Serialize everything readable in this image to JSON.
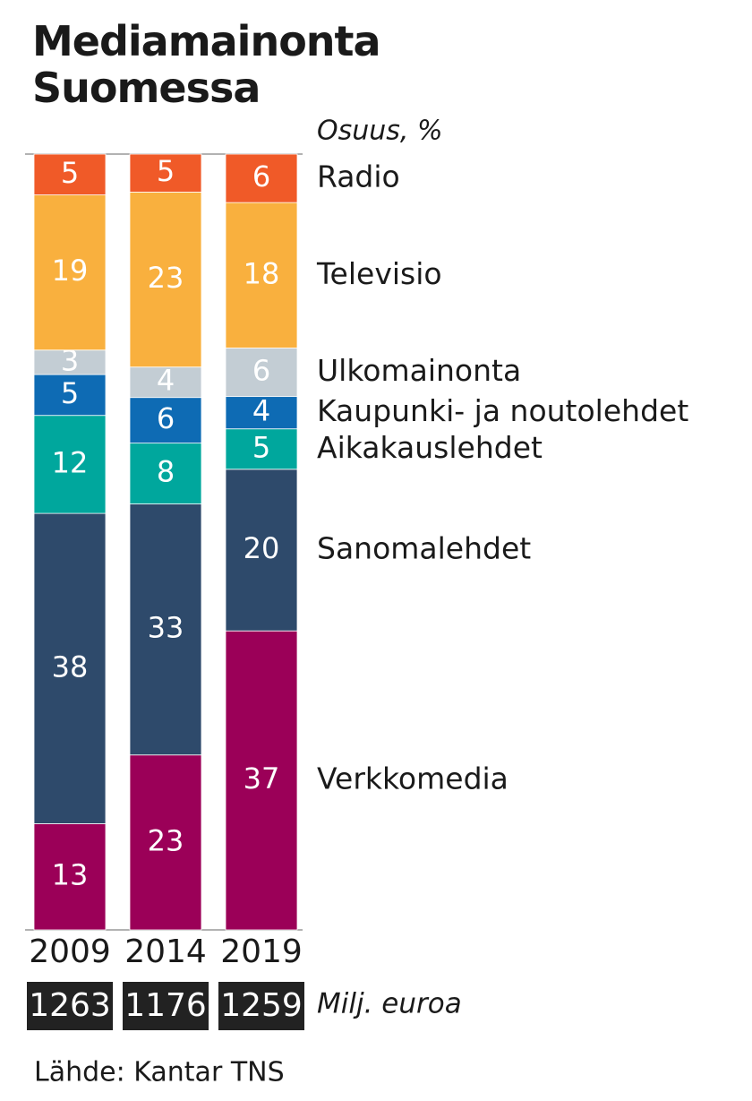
{
  "chart_data": {
    "type": "bar",
    "stacked": "percent",
    "title": "Mediamainonta Suomessa",
    "y_label": "Osuus, %",
    "categories": [
      "2009",
      "2014",
      "2019"
    ],
    "series": [
      {
        "name": "Verkkomedia",
        "color": "#9b0058",
        "values": [
          13,
          23,
          37
        ]
      },
      {
        "name": "Sanomalehdet",
        "color": "#2e4a6b",
        "values": [
          38,
          33,
          20
        ]
      },
      {
        "name": "Aikakauslehdet",
        "color": "#00a79d",
        "values": [
          12,
          8,
          5
        ]
      },
      {
        "name": "Kaupunki- ja noutolehdet",
        "color": "#0e6bb4",
        "values": [
          5,
          6,
          4
        ]
      },
      {
        "name": "Ulkomainonta",
        "color": "#c3cdd4",
        "values": [
          3,
          4,
          6
        ]
      },
      {
        "name": "Televisio",
        "color": "#f9b03e",
        "values": [
          19,
          23,
          18
        ]
      },
      {
        "name": "Radio",
        "color": "#f05a28",
        "values": [
          5,
          5,
          6
        ]
      }
    ],
    "totals": [
      1263,
      1176,
      1259
    ],
    "totals_label": "Milj. euroa",
    "source": "Lähde: Kantar TNS"
  }
}
